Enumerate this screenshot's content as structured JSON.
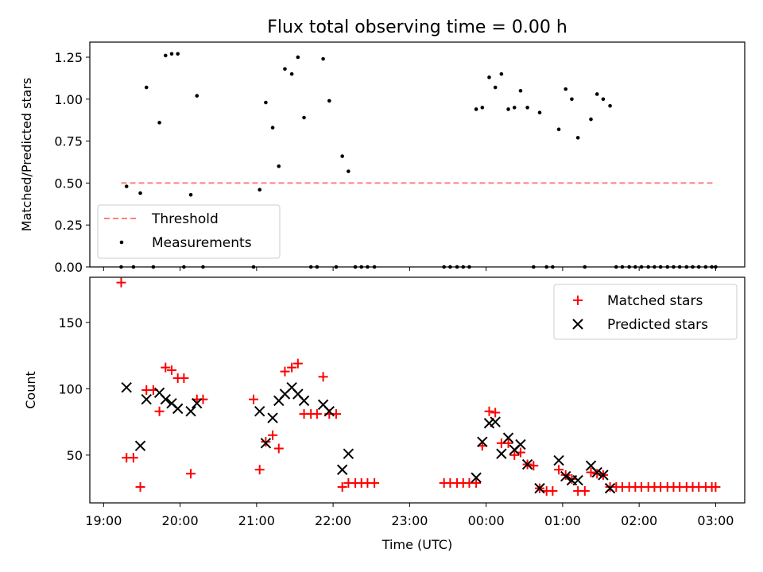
{
  "figure": {
    "title": "Flux total observing time = 0.00 h",
    "xlabel": "Time (UTC)",
    "xticks": [
      "19:00",
      "20:00",
      "21:00",
      "22:00",
      "23:00",
      "00:00",
      "01:00",
      "02:00",
      "03:00"
    ]
  },
  "chart_data": [
    {
      "type": "scatter",
      "panel": "top",
      "title": "Flux total observing time = 0.00 h",
      "ylabel": "Matched/Predicted stars",
      "ylim": [
        0,
        1.34
      ],
      "xlim_hours": [
        18.82,
        27.38
      ],
      "yticks": [
        "0.00",
        "0.25",
        "0.50",
        "0.75",
        "1.00",
        "1.25"
      ],
      "ytick_values": [
        0,
        0.25,
        0.5,
        0.75,
        1.0,
        1.25
      ],
      "legend_position": "lower-left",
      "threshold": {
        "name": "Threshold",
        "value": 0.5,
        "x_range": [
          19.23,
          27.0
        ],
        "color": "#ff7f7f"
      },
      "series": [
        {
          "name": "Measurements",
          "color": "#000000",
          "points": [
            [
              19.23,
              0
            ],
            [
              19.3,
              0.48
            ],
            [
              19.39,
              0
            ],
            [
              19.48,
              0.44
            ],
            [
              19.56,
              1.07
            ],
            [
              19.65,
              0
            ],
            [
              19.73,
              0.86
            ],
            [
              19.81,
              1.26
            ],
            [
              19.89,
              1.27
            ],
            [
              19.97,
              1.27
            ],
            [
              20.05,
              0
            ],
            [
              20.14,
              0.43
            ],
            [
              20.22,
              1.02
            ],
            [
              20.3,
              0
            ],
            [
              20.96,
              0
            ],
            [
              21.04,
              0.46
            ],
            [
              21.12,
              0.98
            ],
            [
              21.21,
              0.83
            ],
            [
              21.29,
              0.6
            ],
            [
              21.37,
              1.18
            ],
            [
              21.46,
              1.15
            ],
            [
              21.54,
              1.25
            ],
            [
              21.62,
              0.89
            ],
            [
              21.71,
              0
            ],
            [
              21.79,
              0
            ],
            [
              21.87,
              1.24
            ],
            [
              21.95,
              0.99
            ],
            [
              22.04,
              0
            ],
            [
              22.12,
              0.66
            ],
            [
              22.2,
              0.57
            ],
            [
              22.29,
              0
            ],
            [
              22.37,
              0
            ],
            [
              22.45,
              0
            ],
            [
              22.54,
              0
            ],
            [
              23.45,
              0
            ],
            [
              23.53,
              0
            ],
            [
              23.62,
              0
            ],
            [
              23.7,
              0
            ],
            [
              23.78,
              0
            ],
            [
              23.87,
              0.94
            ],
            [
              23.95,
              0.95
            ],
            [
              24.04,
              1.13
            ],
            [
              24.12,
              1.07
            ],
            [
              24.2,
              1.15
            ],
            [
              24.29,
              0.94
            ],
            [
              24.37,
              0.95
            ],
            [
              24.45,
              1.05
            ],
            [
              24.54,
              0.95
            ],
            [
              24.62,
              0
            ],
            [
              24.7,
              0.92
            ],
            [
              24.79,
              0
            ],
            [
              24.87,
              0
            ],
            [
              24.95,
              0.82
            ],
            [
              25.04,
              1.06
            ],
            [
              25.12,
              1.0
            ],
            [
              25.2,
              0.77
            ],
            [
              25.29,
              0
            ],
            [
              25.37,
              0.88
            ],
            [
              25.45,
              1.03
            ],
            [
              25.53,
              1.0
            ],
            [
              25.62,
              0.96
            ],
            [
              25.7,
              0
            ],
            [
              25.78,
              0
            ],
            [
              25.87,
              0
            ],
            [
              25.95,
              0
            ],
            [
              26.03,
              0
            ],
            [
              26.12,
              0
            ],
            [
              26.2,
              0
            ],
            [
              26.28,
              0
            ],
            [
              26.37,
              0
            ],
            [
              26.45,
              0
            ],
            [
              26.53,
              0
            ],
            [
              26.62,
              0
            ],
            [
              26.7,
              0
            ],
            [
              26.78,
              0
            ],
            [
              26.87,
              0
            ],
            [
              26.95,
              0
            ],
            [
              27.0,
              0
            ]
          ]
        }
      ]
    },
    {
      "type": "scatter",
      "panel": "bottom",
      "ylabel": "Count",
      "ylim": [
        14,
        184
      ],
      "xlim_hours": [
        18.82,
        27.38
      ],
      "yticks": [
        "50",
        "100",
        "150"
      ],
      "ytick_values": [
        50,
        100,
        150
      ],
      "legend_position": "top-right",
      "series": [
        {
          "name": "Matched stars",
          "marker": "plus",
          "color": "#ff0000",
          "points": [
            [
              19.23,
              180
            ],
            [
              19.3,
              48
            ],
            [
              19.39,
              48
            ],
            [
              19.48,
              26
            ],
            [
              19.56,
              99
            ],
            [
              19.65,
              99
            ],
            [
              19.73,
              83
            ],
            [
              19.81,
              116
            ],
            [
              19.89,
              114
            ],
            [
              19.97,
              108
            ],
            [
              20.05,
              108
            ],
            [
              20.14,
              36
            ],
            [
              20.22,
              92
            ],
            [
              20.3,
              92
            ],
            [
              20.96,
              92
            ],
            [
              21.04,
              39
            ],
            [
              21.12,
              60
            ],
            [
              21.21,
              65
            ],
            [
              21.29,
              55
            ],
            [
              21.37,
              113
            ],
            [
              21.46,
              116
            ],
            [
              21.54,
              119
            ],
            [
              21.62,
              81
            ],
            [
              21.71,
              81
            ],
            [
              21.79,
              81
            ],
            [
              21.87,
              109
            ],
            [
              21.95,
              81
            ],
            [
              22.04,
              81
            ],
            [
              22.12,
              26
            ],
            [
              22.2,
              29
            ],
            [
              22.29,
              29
            ],
            [
              22.37,
              29
            ],
            [
              22.45,
              29
            ],
            [
              22.54,
              29
            ],
            [
              23.45,
              29
            ],
            [
              23.53,
              29
            ],
            [
              23.62,
              29
            ],
            [
              23.7,
              29
            ],
            [
              23.78,
              29
            ],
            [
              23.87,
              29
            ],
            [
              23.95,
              57
            ],
            [
              24.04,
              83
            ],
            [
              24.12,
              82
            ],
            [
              24.2,
              59
            ],
            [
              24.29,
              59
            ],
            [
              24.37,
              50
            ],
            [
              24.45,
              52
            ],
            [
              24.54,
              43
            ],
            [
              24.62,
              42
            ],
            [
              24.7,
              25
            ],
            [
              24.79,
              23
            ],
            [
              24.87,
              23
            ],
            [
              24.95,
              39
            ],
            [
              25.04,
              35
            ],
            [
              25.12,
              32
            ],
            [
              25.2,
              23
            ],
            [
              25.29,
              23
            ],
            [
              25.37,
              37
            ],
            [
              25.45,
              36
            ],
            [
              25.53,
              35
            ],
            [
              25.62,
              26
            ],
            [
              25.7,
              26
            ],
            [
              25.78,
              26
            ],
            [
              25.87,
              26
            ],
            [
              25.95,
              26
            ],
            [
              26.03,
              26
            ],
            [
              26.12,
              26
            ],
            [
              26.2,
              26
            ],
            [
              26.28,
              26
            ],
            [
              26.37,
              26
            ],
            [
              26.45,
              26
            ],
            [
              26.53,
              26
            ],
            [
              26.62,
              26
            ],
            [
              26.7,
              26
            ],
            [
              26.78,
              26
            ],
            [
              26.87,
              26
            ],
            [
              26.95,
              26
            ],
            [
              27.0,
              26
            ]
          ]
        },
        {
          "name": "Predicted stars",
          "marker": "x",
          "color": "#000000",
          "points": [
            [
              19.3,
              101
            ],
            [
              19.48,
              57
            ],
            [
              19.56,
              92
            ],
            [
              19.73,
              97
            ],
            [
              19.81,
              92
            ],
            [
              19.89,
              89
            ],
            [
              19.97,
              85
            ],
            [
              20.14,
              83
            ],
            [
              20.22,
              89
            ],
            [
              21.04,
              83
            ],
            [
              21.12,
              59
            ],
            [
              21.21,
              78
            ],
            [
              21.29,
              91
            ],
            [
              21.37,
              96
            ],
            [
              21.46,
              101
            ],
            [
              21.54,
              96
            ],
            [
              21.62,
              91
            ],
            [
              21.87,
              88
            ],
            [
              21.95,
              83
            ],
            [
              22.12,
              39
            ],
            [
              22.2,
              51
            ],
            [
              23.87,
              33
            ],
            [
              23.95,
              60
            ],
            [
              24.04,
              74
            ],
            [
              24.12,
              75
            ],
            [
              24.2,
              51
            ],
            [
              24.29,
              63
            ],
            [
              24.37,
              54
            ],
            [
              24.45,
              58
            ],
            [
              24.54,
              43
            ],
            [
              24.7,
              25
            ],
            [
              24.95,
              46
            ],
            [
              25.04,
              34
            ],
            [
              25.12,
              31
            ],
            [
              25.2,
              31
            ],
            [
              25.37,
              42
            ],
            [
              25.45,
              37
            ],
            [
              25.53,
              35
            ],
            [
              25.62,
              25
            ]
          ]
        }
      ]
    }
  ]
}
